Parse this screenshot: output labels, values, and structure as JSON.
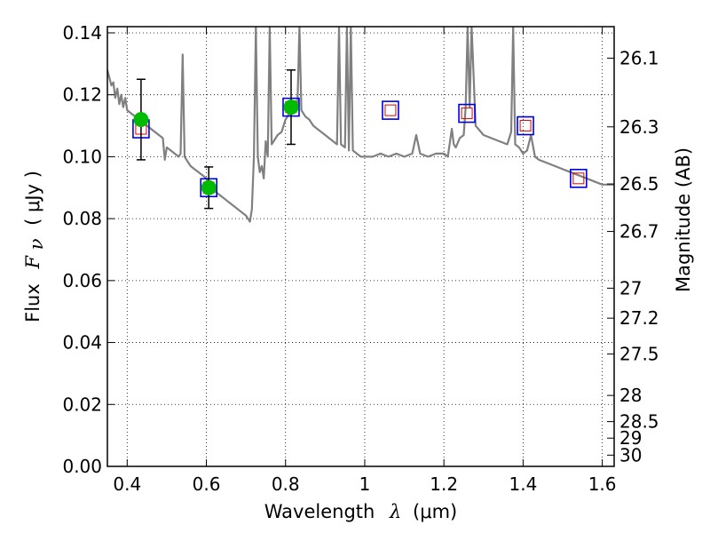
{
  "chart_data": {
    "type": "scatter",
    "xlabel": {
      "text": "Wavelength",
      "symbol": "λ",
      "unit": "(μm)"
    },
    "ylabel": {
      "text": "Flux",
      "symbol": "F",
      "subscript": "ν",
      "unit": "( μJy )"
    },
    "y2label": "Magnitude (AB)",
    "xlim": [
      0.35,
      1.63
    ],
    "ylim": [
      0.0,
      0.142
    ],
    "xticks": [
      0.4,
      0.6,
      0.8,
      1.0,
      1.2,
      1.4,
      1.6
    ],
    "xtick_labels": [
      "0.4",
      "0.6",
      "0.8",
      "1",
      "1.2",
      "1.4",
      "1.6"
    ],
    "yticks": [
      0.0,
      0.02,
      0.04,
      0.06,
      0.08,
      0.1,
      0.12,
      0.14
    ],
    "ytick_labels": [
      "0.00",
      "0.02",
      "0.04",
      "0.06",
      "0.08",
      "0.10",
      "0.12",
      "0.14"
    ],
    "y2ticks": [
      26.1,
      26.3,
      26.5,
      26.7,
      27,
      27.2,
      27.5,
      28,
      28.5,
      29,
      30
    ],
    "y2tick_labels": [
      "26.1",
      "26.3",
      "26.5",
      "26.7",
      "27",
      "27.2",
      "27.5",
      "28",
      "28.5",
      "29",
      "30"
    ],
    "grid": true,
    "colors": {
      "spectrum": "#808080",
      "observed": "#00bb00",
      "model_box": "#0000dd",
      "model_inner": "#dd0000",
      "errorbar": "#000000"
    },
    "series": [
      {
        "type": "line",
        "points": [
          [
            0.35,
            0.128
          ],
          [
            0.36,
            0.123
          ],
          [
            0.365,
            0.124
          ],
          [
            0.37,
            0.119
          ],
          [
            0.375,
            0.122
          ],
          [
            0.38,
            0.117
          ],
          [
            0.385,
            0.12
          ],
          [
            0.39,
            0.116
          ],
          [
            0.395,
            0.119
          ],
          [
            0.4,
            0.115
          ],
          [
            0.41,
            0.114
          ],
          [
            0.42,
            0.113
          ],
          [
            0.43,
            0.112
          ],
          [
            0.44,
            0.111
          ],
          [
            0.45,
            0.11
          ],
          [
            0.46,
            0.109
          ],
          [
            0.47,
            0.108
          ],
          [
            0.48,
            0.107
          ],
          [
            0.49,
            0.106
          ],
          [
            0.495,
            0.099
          ],
          [
            0.5,
            0.103
          ],
          [
            0.51,
            0.102
          ],
          [
            0.52,
            0.101
          ],
          [
            0.53,
            0.1
          ],
          [
            0.535,
            0.101
          ],
          [
            0.54,
            0.133
          ],
          [
            0.545,
            0.1
          ],
          [
            0.55,
            0.099
          ],
          [
            0.56,
            0.097
          ],
          [
            0.57,
            0.096
          ],
          [
            0.58,
            0.095
          ],
          [
            0.59,
            0.094
          ],
          [
            0.6,
            0.093
          ],
          [
            0.61,
            0.091
          ],
          [
            0.62,
            0.089
          ],
          [
            0.63,
            0.088
          ],
          [
            0.64,
            0.087
          ],
          [
            0.65,
            0.086
          ],
          [
            0.66,
            0.085
          ],
          [
            0.67,
            0.084
          ],
          [
            0.68,
            0.083
          ],
          [
            0.69,
            0.082
          ],
          [
            0.7,
            0.081
          ],
          [
            0.705,
            0.08
          ],
          [
            0.71,
            0.079
          ],
          [
            0.715,
            0.083
          ],
          [
            0.72,
            0.1
          ],
          [
            0.725,
            0.142
          ],
          [
            0.73,
            0.1
          ],
          [
            0.735,
            0.095
          ],
          [
            0.74,
            0.097
          ],
          [
            0.745,
            0.093
          ],
          [
            0.75,
            0.105
          ],
          [
            0.755,
            0.1
          ],
          [
            0.76,
            0.142
          ],
          [
            0.765,
            0.104
          ],
          [
            0.77,
            0.105
          ],
          [
            0.78,
            0.107
          ],
          [
            0.79,
            0.108
          ],
          [
            0.8,
            0.112
          ],
          [
            0.81,
            0.114
          ],
          [
            0.82,
            0.117
          ],
          [
            0.825,
            0.118
          ],
          [
            0.83,
            0.116
          ],
          [
            0.835,
            0.142
          ],
          [
            0.84,
            0.115
          ],
          [
            0.85,
            0.113
          ],
          [
            0.86,
            0.112
          ],
          [
            0.87,
            0.11
          ],
          [
            0.88,
            0.109
          ],
          [
            0.89,
            0.108
          ],
          [
            0.9,
            0.107
          ],
          [
            0.91,
            0.106
          ],
          [
            0.92,
            0.105
          ],
          [
            0.93,
            0.104
          ],
          [
            0.935,
            0.142
          ],
          [
            0.94,
            0.104
          ],
          [
            0.95,
            0.103
          ],
          [
            0.955,
            0.142
          ],
          [
            0.96,
            0.102
          ],
          [
            0.965,
            0.142
          ],
          [
            0.97,
            0.102
          ],
          [
            0.98,
            0.101
          ],
          [
            0.99,
            0.1
          ],
          [
            1.0,
            0.1
          ],
          [
            1.02,
            0.1
          ],
          [
            1.04,
            0.101
          ],
          [
            1.06,
            0.1
          ],
          [
            1.08,
            0.101
          ],
          [
            1.1,
            0.1
          ],
          [
            1.12,
            0.101
          ],
          [
            1.13,
            0.107
          ],
          [
            1.14,
            0.101
          ],
          [
            1.16,
            0.1
          ],
          [
            1.18,
            0.101
          ],
          [
            1.2,
            0.101
          ],
          [
            1.21,
            0.1
          ],
          [
            1.22,
            0.109
          ],
          [
            1.225,
            0.104
          ],
          [
            1.23,
            0.103
          ],
          [
            1.24,
            0.106
          ],
          [
            1.25,
            0.107
          ],
          [
            1.255,
            0.116
          ],
          [
            1.26,
            0.142
          ],
          [
            1.265,
            0.116
          ],
          [
            1.27,
            0.142
          ],
          [
            1.28,
            0.11
          ],
          [
            1.3,
            0.107
          ],
          [
            1.32,
            0.106
          ],
          [
            1.34,
            0.105
          ],
          [
            1.36,
            0.104
          ],
          [
            1.37,
            0.108
          ],
          [
            1.375,
            0.142
          ],
          [
            1.38,
            0.104
          ],
          [
            1.39,
            0.103
          ],
          [
            1.4,
            0.101
          ],
          [
            1.41,
            0.102
          ],
          [
            1.42,
            0.107
          ],
          [
            1.43,
            0.1
          ],
          [
            1.44,
            0.099
          ],
          [
            1.46,
            0.098
          ],
          [
            1.48,
            0.097
          ],
          [
            1.5,
            0.096
          ],
          [
            1.52,
            0.095
          ],
          [
            1.54,
            0.094
          ],
          [
            1.56,
            0.093
          ],
          [
            1.58,
            0.092
          ],
          [
            1.6,
            0.091
          ],
          [
            1.63,
            0.091
          ]
        ]
      },
      {
        "type": "model_photometry",
        "x": [
          0.435,
          0.606,
          0.814,
          1.065,
          1.258,
          1.406,
          1.54
        ],
        "y": [
          0.109,
          0.09,
          0.116,
          0.115,
          0.114,
          0.11,
          0.093
        ]
      },
      {
        "type": "observed_photometry",
        "x": [
          0.435,
          0.606,
          0.814
        ],
        "y": [
          0.112,
          0.09,
          0.116
        ],
        "yerr": [
          0.013,
          0.0067,
          0.012
        ]
      }
    ]
  }
}
